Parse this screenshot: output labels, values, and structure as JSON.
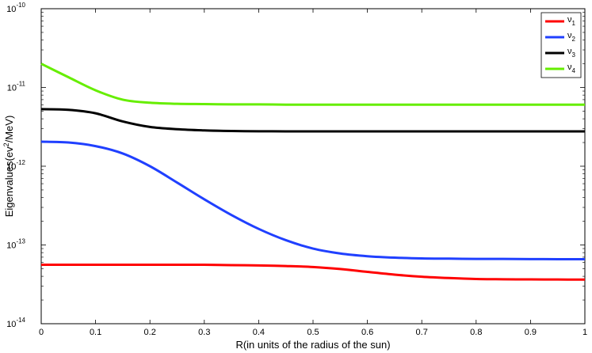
{
  "chart_data": {
    "type": "line",
    "title": "",
    "xlabel": "R(in units of the radius of the sun)",
    "ylabel_parts": {
      "before": "Eigenvalues(ev",
      "sup": "2",
      "after": "/MeV)"
    },
    "yscale": "log",
    "xlim": [
      0,
      1
    ],
    "ylim": [
      1e-14,
      1e-10
    ],
    "grid": false,
    "legend_position": "top-right",
    "x_ticks": [
      "0",
      "0.1",
      "0.2",
      "0.3",
      "0.4",
      "0.5",
      "0.6",
      "0.7",
      "0.8",
      "0.9",
      "1"
    ],
    "y_ticks": [
      {
        "base": "10",
        "exp": "-14"
      },
      {
        "base": "10",
        "exp": "-13"
      },
      {
        "base": "10",
        "exp": "-12"
      },
      {
        "base": "10",
        "exp": "-11"
      },
      {
        "base": "10",
        "exp": "-10"
      }
    ],
    "x": [
      0,
      0.05,
      0.1,
      0.15,
      0.2,
      0.25,
      0.3,
      0.35,
      0.4,
      0.45,
      0.5,
      0.55,
      0.6,
      0.65,
      0.7,
      0.75,
      0.8,
      0.85,
      0.9,
      0.95,
      1.0
    ],
    "series": [
      {
        "name": "ν",
        "sub": "1",
        "color": "#ff0000",
        "values": [
          5.6e-14,
          5.6e-14,
          5.6e-14,
          5.6e-14,
          5.6e-14,
          5.6e-14,
          5.6e-14,
          5.55e-14,
          5.5e-14,
          5.4e-14,
          5.25e-14,
          4.95e-14,
          4.55e-14,
          4.2e-14,
          3.95e-14,
          3.8e-14,
          3.7e-14,
          3.67e-14,
          3.65e-14,
          3.64e-14,
          3.63e-14
        ]
      },
      {
        "name": "ν",
        "sub": "2",
        "color": "#2040ff",
        "values": [
          2.05e-12,
          2e-12,
          1.8e-12,
          1.45e-12,
          1e-12,
          6.2e-13,
          3.8e-13,
          2.4e-13,
          1.6e-13,
          1.15e-13,
          9e-14,
          7.8e-14,
          7.2e-14,
          6.9e-14,
          6.75e-14,
          6.7e-14,
          6.65e-14,
          6.65e-14,
          6.62e-14,
          6.6e-14,
          6.6e-14
        ]
      },
      {
        "name": "ν",
        "sub": "3",
        "color": "#000000",
        "values": [
          5.3e-12,
          5.2e-12,
          4.7e-12,
          3.7e-12,
          3.15e-12,
          2.95e-12,
          2.85e-12,
          2.8e-12,
          2.78e-12,
          2.77e-12,
          2.77e-12,
          2.77e-12,
          2.77e-12,
          2.77e-12,
          2.77e-12,
          2.77e-12,
          2.77e-12,
          2.77e-12,
          2.77e-12,
          2.77e-12,
          2.77e-12
        ]
      },
      {
        "name": "ν",
        "sub": "4",
        "color": "#66ee00",
        "values": [
          2e-11,
          1.35e-11,
          9.2e-12,
          7e-12,
          6.4e-12,
          6.2e-12,
          6.15e-12,
          6.1e-12,
          6.1e-12,
          6.05e-12,
          6.05e-12,
          6.05e-12,
          6.05e-12,
          6.05e-12,
          6.05e-12,
          6.05e-12,
          6.05e-12,
          6.05e-12,
          6.05e-12,
          6.05e-12,
          6.05e-12
        ]
      }
    ]
  }
}
